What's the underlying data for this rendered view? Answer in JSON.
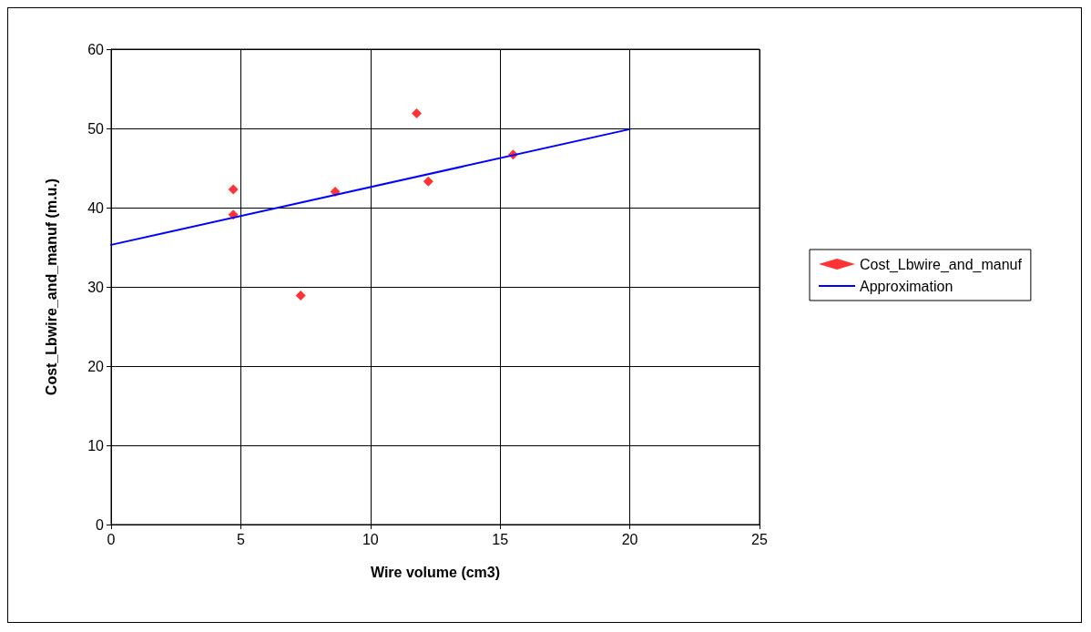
{
  "chart_data": {
    "type": "scatter",
    "xlabel": "Wire volume (cm3)",
    "ylabel": "Cost_Lbwire_and_manuf (m.u.)",
    "xlim": [
      0,
      25
    ],
    "xticks": [
      0,
      5,
      10,
      15,
      20,
      25
    ],
    "ylim": [
      0,
      60
    ],
    "yticks": [
      0,
      10,
      20,
      30,
      40,
      50,
      60
    ],
    "grid": true,
    "legend": "right",
    "series": [
      {
        "name": "Cost_Lbwire_and_manuf",
        "type": "scatter",
        "color": "#ff0000",
        "marker": "diamond",
        "x": [
          4.71,
          4.71,
          7.31,
          8.64,
          11.78,
          12.23,
          15.5
        ],
        "values": [
          42.3,
          39.1,
          28.9,
          42.0,
          51.9,
          43.3,
          46.7
        ]
      },
      {
        "name": "Approximation",
        "type": "line",
        "color": "#0000ff",
        "marker": "none",
        "line_style": "solid",
        "x": [
          0,
          20
        ],
        "values": [
          35.3,
          49.9
        ]
      }
    ]
  }
}
